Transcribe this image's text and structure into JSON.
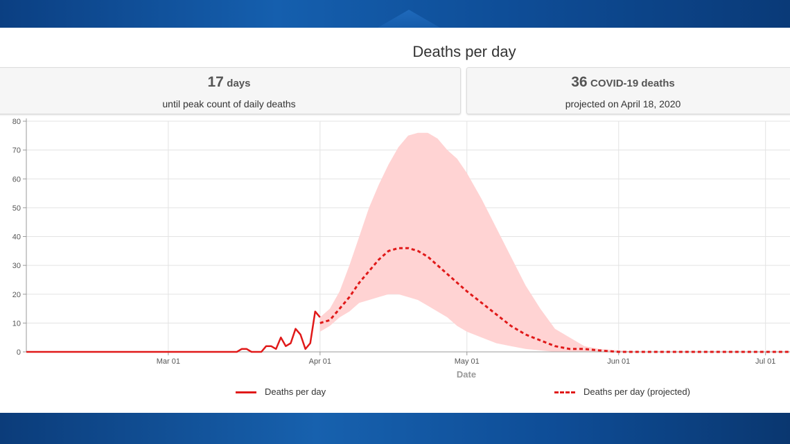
{
  "title": "Deaths per day",
  "cards": [
    {
      "number": "17",
      "unit": "days",
      "caption": "until peak count of daily deaths"
    },
    {
      "number": "36",
      "unit": "COVID-19 deaths",
      "caption": "projected on April 18, 2020"
    }
  ],
  "legend": {
    "actual": "Deaths per day",
    "projected": "Deaths per day (projected)"
  },
  "colors": {
    "line": "#e01919",
    "band": "#ffd3d3",
    "grid": "#e3e3e3",
    "header_blue": "#0e4d97"
  },
  "chart_data": {
    "type": "line",
    "xlabel": "Date",
    "ylabel": "",
    "ylim": [
      0,
      80
    ],
    "yticks": [
      0,
      10,
      20,
      30,
      40,
      50,
      60,
      70,
      80
    ],
    "xlim": [
      "2020-02-01",
      "2020-07-06"
    ],
    "xticks": [
      {
        "date": "2020-03-01",
        "label": "Mar 01"
      },
      {
        "date": "2020-04-01",
        "label": "Apr 01"
      },
      {
        "date": "2020-05-01",
        "label": "May 01"
      },
      {
        "date": "2020-06-01",
        "label": "Jun 01"
      },
      {
        "date": "2020-07-01",
        "label": "Jul 01"
      }
    ],
    "grid": true,
    "series": [
      {
        "name": "Deaths per day",
        "style": "solid",
        "points": [
          [
            "2020-02-01",
            0
          ],
          [
            "2020-03-15",
            0
          ],
          [
            "2020-03-16",
            1
          ],
          [
            "2020-03-17",
            1
          ],
          [
            "2020-03-18",
            0
          ],
          [
            "2020-03-19",
            0
          ],
          [
            "2020-03-20",
            0
          ],
          [
            "2020-03-21",
            2
          ],
          [
            "2020-03-22",
            2
          ],
          [
            "2020-03-23",
            1
          ],
          [
            "2020-03-24",
            5
          ],
          [
            "2020-03-25",
            2
          ],
          [
            "2020-03-26",
            3
          ],
          [
            "2020-03-27",
            8
          ],
          [
            "2020-03-28",
            6
          ],
          [
            "2020-03-29",
            1
          ],
          [
            "2020-03-30",
            3
          ],
          [
            "2020-03-31",
            14
          ],
          [
            "2020-04-01",
            12
          ]
        ]
      },
      {
        "name": "Deaths per day (projected)",
        "style": "dashed",
        "points": [
          [
            "2020-04-01",
            10
          ],
          [
            "2020-04-03",
            11
          ],
          [
            "2020-04-05",
            15
          ],
          [
            "2020-04-07",
            19
          ],
          [
            "2020-04-09",
            24
          ],
          [
            "2020-04-11",
            28
          ],
          [
            "2020-04-13",
            32
          ],
          [
            "2020-04-15",
            35
          ],
          [
            "2020-04-17",
            36
          ],
          [
            "2020-04-19",
            36
          ],
          [
            "2020-04-21",
            35
          ],
          [
            "2020-04-23",
            33
          ],
          [
            "2020-04-25",
            30
          ],
          [
            "2020-04-27",
            27
          ],
          [
            "2020-04-29",
            24
          ],
          [
            "2020-05-01",
            21
          ],
          [
            "2020-05-04",
            17
          ],
          [
            "2020-05-07",
            13
          ],
          [
            "2020-05-10",
            9
          ],
          [
            "2020-05-13",
            6
          ],
          [
            "2020-05-16",
            4
          ],
          [
            "2020-05-19",
            2
          ],
          [
            "2020-05-22",
            1
          ],
          [
            "2020-05-25",
            1
          ],
          [
            "2020-05-28",
            0.5
          ],
          [
            "2020-06-01",
            0
          ],
          [
            "2020-07-06",
            0
          ]
        ]
      }
    ],
    "uncertainty_band": {
      "x": [
        "2020-04-01",
        "2020-04-03",
        "2020-04-05",
        "2020-04-07",
        "2020-04-09",
        "2020-04-11",
        "2020-04-13",
        "2020-04-15",
        "2020-04-17",
        "2020-04-19",
        "2020-04-21",
        "2020-04-23",
        "2020-04-25",
        "2020-04-27",
        "2020-04-29",
        "2020-05-01",
        "2020-05-04",
        "2020-05-07",
        "2020-05-10",
        "2020-05-13",
        "2020-05-16",
        "2020-05-19",
        "2020-05-22",
        "2020-05-25",
        "2020-05-28",
        "2020-06-01",
        "2020-06-05",
        "2020-07-06"
      ],
      "lower": [
        7,
        9,
        12,
        14,
        17,
        18,
        19,
        20,
        20,
        19,
        18,
        16,
        14,
        12,
        9,
        7,
        5,
        3,
        2,
        1,
        0.5,
        0,
        0,
        0,
        0,
        0,
        0,
        0
      ],
      "upper": [
        12,
        15,
        21,
        30,
        40,
        50,
        58,
        65,
        71,
        75,
        76,
        76,
        74,
        70,
        67,
        62,
        53,
        43,
        33,
        23,
        15,
        8,
        5,
        2,
        1,
        0.5,
        0,
        0
      ]
    }
  }
}
